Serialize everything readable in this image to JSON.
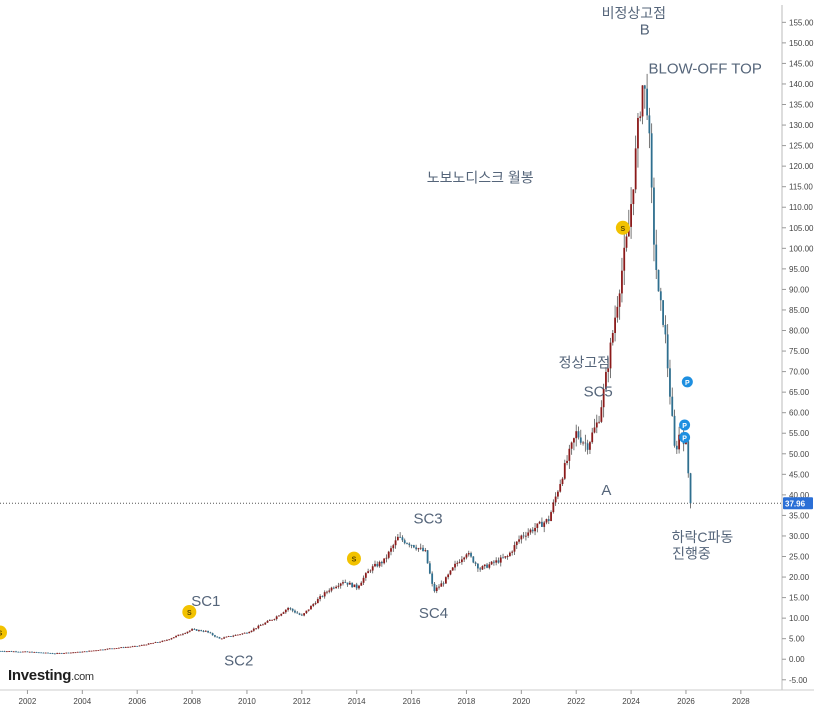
{
  "brand": {
    "logo_text": "Investing",
    "logo_suffix": ".com"
  },
  "chart_data": {
    "type": "candlestick",
    "title": "노보노디스크 월봉",
    "x_range": [
      2001.0,
      2029.5
    ],
    "y_range": [
      -7,
      158
    ],
    "x_ticks": [
      "2002",
      "2004",
      "2006",
      "2008",
      "2010",
      "2012",
      "2014",
      "2016",
      "2018",
      "2020",
      "2022",
      "2024",
      "2026",
      "2028"
    ],
    "y_ticks": [
      "-5.00",
      "0.00",
      "5.00",
      "10.00",
      "15.00",
      "20.00",
      "25.00",
      "30.00",
      "35.00",
      "40.00",
      "45.00",
      "50.00",
      "55.00",
      "60.00",
      "65.00",
      "70.00",
      "75.00",
      "80.00",
      "85.00",
      "90.00",
      "95.00",
      "100.00",
      "105.00",
      "110.00",
      "115.00",
      "120.00",
      "125.00",
      "130.00",
      "135.00",
      "140.00",
      "145.00",
      "150.00",
      "155.00"
    ],
    "last_price": {
      "value": 37.96,
      "label": "37.96"
    },
    "price_path": [
      [
        2001.0,
        2.0
      ],
      [
        2002.0,
        1.8
      ],
      [
        2003.0,
        1.4
      ],
      [
        2004.0,
        1.8
      ],
      [
        2005.0,
        2.6
      ],
      [
        2006.0,
        3.2
      ],
      [
        2007.0,
        4.5
      ],
      [
        2008.0,
        7.2
      ],
      [
        2008.5,
        6.8
      ],
      [
        2009.0,
        5.0
      ],
      [
        2010.0,
        6.5
      ],
      [
        2011.0,
        10.0
      ],
      [
        2011.5,
        12.5
      ],
      [
        2012.0,
        10.5
      ],
      [
        2012.5,
        14.0
      ],
      [
        2013.0,
        17.0
      ],
      [
        2013.5,
        19.0
      ],
      [
        2014.0,
        17.5
      ],
      [
        2014.5,
        22.0
      ],
      [
        2015.0,
        24.0
      ],
      [
        2015.5,
        29.5
      ],
      [
        2016.0,
        28.0
      ],
      [
        2016.5,
        26.0
      ],
      [
        2016.8,
        16.5
      ],
      [
        2017.2,
        19.0
      ],
      [
        2017.6,
        23.0
      ],
      [
        2018.0,
        26.0
      ],
      [
        2018.5,
        22.0
      ],
      [
        2019.0,
        23.5
      ],
      [
        2019.5,
        25.0
      ],
      [
        2020.0,
        30.0
      ],
      [
        2020.5,
        32.0
      ],
      [
        2021.0,
        34.0
      ],
      [
        2021.5,
        45.0
      ],
      [
        2022.0,
        55.0
      ],
      [
        2022.4,
        52.0
      ],
      [
        2022.8,
        58.0
      ],
      [
        2023.0,
        65.0
      ],
      [
        2023.3,
        78.0
      ],
      [
        2023.6,
        92.0
      ],
      [
        2023.9,
        104.0
      ],
      [
        2024.2,
        125.0
      ],
      [
        2024.4,
        140.0
      ],
      [
        2024.6,
        135.0
      ],
      [
        2024.8,
        105.0
      ],
      [
        2025.0,
        88.0
      ],
      [
        2025.2,
        82.0
      ],
      [
        2025.4,
        66.0
      ],
      [
        2025.6,
        50.0
      ],
      [
        2025.8,
        56.0
      ],
      [
        2026.0,
        52.0
      ],
      [
        2026.1,
        44.0
      ],
      [
        2026.17,
        37.96
      ]
    ],
    "markers": [
      {
        "type": "S",
        "x": 2001.0,
        "y": 6.5
      },
      {
        "type": "S",
        "x": 2007.9,
        "y": 11.5
      },
      {
        "type": "S",
        "x": 2013.9,
        "y": 24.5
      },
      {
        "type": "S",
        "x": 2023.7,
        "y": 105.0
      },
      {
        "type": "P",
        "x": 2026.05,
        "y": 67.5
      },
      {
        "type": "P",
        "x": 2025.95,
        "y": 57.0
      },
      {
        "type": "P",
        "x": 2025.95,
        "y": 54.0
      }
    ],
    "annotations": [
      {
        "text": "비정상고점",
        "x": 2024.1,
        "y": 156.0
      },
      {
        "text": "B",
        "x": 2024.5,
        "y": 152.0
      },
      {
        "text": "BLOW-OFF TOP",
        "x": 2026.7,
        "y": 142.5
      },
      {
        "text": "노보노디스크 월봉",
        "x": 2018.5,
        "y": 116.0
      },
      {
        "text": "정상고점",
        "x": 2022.3,
        "y": 71.0
      },
      {
        "text": "SC5",
        "x": 2022.8,
        "y": 64.0
      },
      {
        "text": "A",
        "x": 2023.1,
        "y": 40.0
      },
      {
        "text": "SC3",
        "x": 2016.6,
        "y": 33.0
      },
      {
        "text": "SC4",
        "x": 2016.8,
        "y": 10.0
      },
      {
        "text": "SC1",
        "x": 2008.5,
        "y": 13.0
      },
      {
        "text": "SC2",
        "x": 2009.7,
        "y": -1.5
      },
      {
        "text": "하락C파동",
        "x": 2026.6,
        "y": 28.5
      },
      {
        "text": "진행중",
        "x": 2026.2,
        "y": 24.5
      }
    ]
  }
}
